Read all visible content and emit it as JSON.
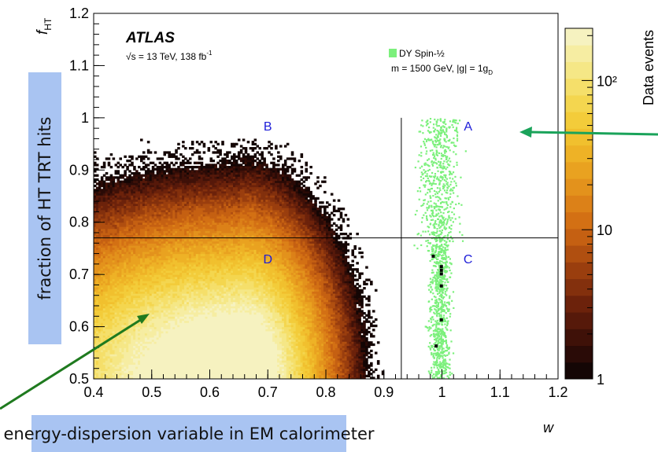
{
  "chart_data": {
    "type": "heatmap",
    "experiment": "ATLAS",
    "energy_lumi": "√s = 13 TeV, 138 fb",
    "lumi_superscript": "-1",
    "legend": {
      "entry": "DY Spin-½",
      "color": "#7cf07c",
      "detail": "m = 1500 GeV, |g| = 1g",
      "detail_subscript": "D"
    },
    "x_axis": {
      "title": "w",
      "range": [
        0.4,
        1.2
      ],
      "ticks": [
        "0.4",
        "0.5",
        "0.6",
        "0.7",
        "0.8",
        "0.9",
        "1",
        "1.1",
        "1.2"
      ]
    },
    "y_axis": {
      "title": "f",
      "title_subscript": "HT",
      "range": [
        0.5,
        1.2
      ],
      "ticks": [
        "0.5",
        "0.6",
        "0.7",
        "0.8",
        "0.9",
        "1",
        "1.1",
        "1.2"
      ]
    },
    "colorbar": {
      "label": "Data events",
      "scale": "log",
      "ticks": [
        "1",
        "10",
        "10²"
      ],
      "colors": [
        "#140605",
        "#2a0b07",
        "#3f1108",
        "#56190a",
        "#6c220b",
        "#83300d",
        "#9a3e0e",
        "#b04f10",
        "#c56012",
        "#d37014",
        "#dc8118",
        "#e3921c",
        "#e9a220",
        "#eeb226",
        "#f1c02e",
        "#f3cc3a",
        "#f4d64f",
        "#f5df6a",
        "#f5e786",
        "#f6eda2",
        "#f6f2c0"
      ]
    },
    "regions": [
      {
        "name": "A",
        "w": 1.045,
        "f": 0.985
      },
      {
        "name": "B",
        "w": 0.7,
        "f": 0.985
      },
      {
        "name": "C",
        "w": 1.045,
        "f": 0.73
      },
      {
        "name": "D",
        "w": 0.7,
        "f": 0.73
      }
    ],
    "cut_lines": {
      "w": 0.93,
      "f": 0.77
    },
    "data_distribution": {
      "w_range": [
        0.4,
        0.93
      ],
      "f_range": [
        0.5,
        0.95
      ],
      "peak_w": 0.65,
      "peak_f": 0.55
    },
    "signal_distribution": {
      "w_center": 0.995,
      "w_spread": 0.02,
      "f_range": [
        0.5,
        1.0
      ]
    },
    "signal_region_events": [
      {
        "w": 0.985,
        "f": 0.735
      },
      {
        "w": 0.999,
        "f": 0.715
      },
      {
        "w": 0.999,
        "f": 0.708
      },
      {
        "w": 0.999,
        "f": 0.701
      },
      {
        "w": 0.999,
        "f": 0.678
      },
      {
        "w": 0.999,
        "f": 0.613
      },
      {
        "w": 0.99,
        "f": 0.563
      }
    ]
  },
  "annotations": {
    "y_note": "fraction of HT TRT hits",
    "x_note": "energy-dispersion variable in EM calorimeter"
  }
}
